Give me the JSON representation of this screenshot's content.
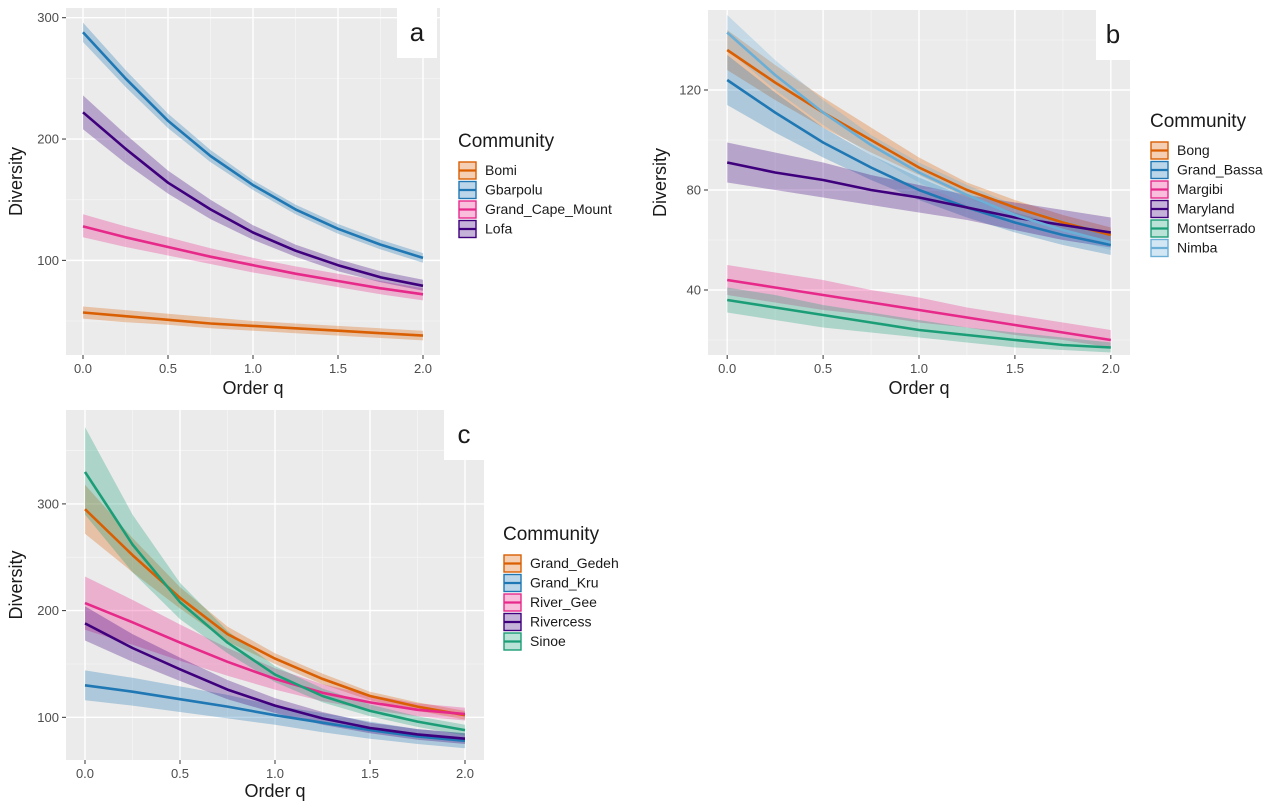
{
  "chart_data": [
    {
      "type": "line",
      "panel_label": "a",
      "xlabel": "Order q",
      "ylabel": "Diversity",
      "legend_title": "Community",
      "xlim": [
        -0.1,
        2.1
      ],
      "ylim": [
        22,
        308
      ],
      "xticks": [
        "0.0",
        "0.5",
        "1.0",
        "1.5",
        "2.0"
      ],
      "xtick_values": [
        0,
        0.5,
        1,
        1.5,
        2
      ],
      "yticks": [
        "100",
        "200",
        "300"
      ],
      "ytick_values": [
        100,
        200,
        300
      ],
      "x": [
        0,
        0.25,
        0.5,
        0.75,
        1.0,
        1.25,
        1.5,
        1.75,
        2.0
      ],
      "series": [
        {
          "name": "Bomi",
          "color": "#d95f02",
          "values": [
            57,
            54,
            51,
            48,
            46,
            44,
            42,
            40,
            38
          ],
          "lower": [
            52,
            49,
            47,
            44,
            42,
            40,
            38,
            36,
            34
          ],
          "upper": [
            62,
            59,
            56,
            53,
            50,
            48,
            46,
            44,
            42
          ]
        },
        {
          "name": "Gbarpolu",
          "color": "#1f78b4",
          "values": [
            288,
            250,
            215,
            186,
            162,
            142,
            126,
            113,
            102
          ],
          "lower": [
            280,
            243,
            209,
            181,
            158,
            138,
            122,
            109,
            98
          ],
          "upper": [
            296,
            257,
            221,
            191,
            166,
            146,
            130,
            117,
            106
          ]
        },
        {
          "name": "Grand_Cape_Mount",
          "color": "#e7298a",
          "values": [
            128,
            119,
            111,
            103,
            96,
            89,
            83,
            77,
            72
          ],
          "lower": [
            119,
            111,
            104,
            97,
            90,
            84,
            78,
            72,
            67
          ],
          "upper": [
            138,
            128,
            119,
            110,
            102,
            95,
            89,
            83,
            77
          ]
        },
        {
          "name": "Lofa",
          "color": "#3f007d",
          "values": [
            222,
            192,
            164,
            142,
            123,
            108,
            96,
            86,
            79
          ],
          "lower": [
            208,
            180,
            155,
            134,
            117,
            103,
            91,
            82,
            75
          ],
          "upper": [
            236,
            204,
            174,
            150,
            129,
            113,
            101,
            91,
            84
          ]
        }
      ]
    },
    {
      "type": "line",
      "panel_label": "b",
      "xlabel": "Order q",
      "ylabel": "Diversity",
      "legend_title": "Community",
      "xlim": [
        -0.1,
        2.1
      ],
      "ylim": [
        14,
        152
      ],
      "xticks": [
        "0.0",
        "0.5",
        "1.0",
        "1.5",
        "2.0"
      ],
      "xtick_values": [
        0,
        0.5,
        1,
        1.5,
        2
      ],
      "yticks": [
        "40",
        "80",
        "120"
      ],
      "ytick_values": [
        40,
        80,
        120
      ],
      "x": [
        0,
        0.25,
        0.5,
        0.75,
        1.0,
        1.25,
        1.5,
        1.75,
        2.0
      ],
      "series": [
        {
          "name": "Bong",
          "color": "#d95f02",
          "values": [
            136,
            123,
            111,
            100,
            89,
            80,
            73,
            67,
            62
          ],
          "lower": [
            128,
            116,
            105,
            95,
            86,
            77,
            70,
            64,
            59
          ],
          "upper": [
            144,
            130,
            117,
            105,
            93,
            83,
            76,
            70,
            65
          ]
        },
        {
          "name": "Grand_Bassa",
          "color": "#1f78b4",
          "values": [
            124,
            111,
            99,
            89,
            80,
            73,
            67,
            62,
            58
          ],
          "lower": [
            114,
            103,
            93,
            84,
            76,
            69,
            63,
            58,
            54
          ],
          "upper": [
            134,
            119,
            105,
            94,
            85,
            77,
            71,
            66,
            62
          ]
        },
        {
          "name": "Margibi",
          "color": "#e7298a",
          "values": [
            44,
            41,
            38,
            35,
            32,
            29,
            26,
            23,
            20
          ],
          "lower": [
            38,
            35,
            32,
            30,
            27,
            25,
            22,
            20,
            17
          ],
          "upper": [
            50,
            47,
            44,
            40,
            37,
            33,
            30,
            27,
            24
          ]
        },
        {
          "name": "Maryland",
          "color": "#3f007d",
          "values": [
            91,
            87,
            84,
            80,
            77,
            73,
            69,
            66,
            63
          ],
          "lower": [
            83,
            80,
            77,
            74,
            71,
            68,
            64,
            60,
            57
          ],
          "upper": [
            99,
            95,
            91,
            86,
            82,
            78,
            75,
            72,
            69
          ]
        },
        {
          "name": "Montserrado",
          "color": "#1b9e77",
          "values": [
            36,
            33,
            30,
            27,
            24,
            22,
            20,
            18,
            17
          ],
          "lower": [
            31,
            28,
            25,
            23,
            21,
            19,
            17,
            16,
            15
          ],
          "upper": [
            41,
            38,
            34,
            31,
            28,
            25,
            23,
            21,
            19
          ]
        },
        {
          "name": "Nimba",
          "color": "#6baed6",
          "values": [
            143,
            126,
            111,
            98,
            87,
            78,
            70,
            64,
            59
          ],
          "lower": [
            136,
            120,
            106,
            94,
            83,
            74,
            67,
            61,
            56
          ],
          "upper": [
            150,
            132,
            116,
            102,
            91,
            82,
            74,
            68,
            63
          ]
        }
      ]
    },
    {
      "type": "line",
      "panel_label": "c",
      "xlabel": "Order q",
      "ylabel": "Diversity",
      "legend_title": "Community",
      "xlim": [
        -0.1,
        2.1
      ],
      "ylim": [
        60,
        388
      ],
      "xticks": [
        "0.0",
        "0.5",
        "1.0",
        "1.5",
        "2.0"
      ],
      "xtick_values": [
        0,
        0.5,
        1,
        1.5,
        2
      ],
      "yticks": [
        "100",
        "200",
        "300"
      ],
      "ytick_values": [
        100,
        200,
        300
      ],
      "x": [
        0,
        0.25,
        0.5,
        0.75,
        1.0,
        1.25,
        1.5,
        1.75,
        2.0
      ],
      "series": [
        {
          "name": "Grand_Gedeh",
          "color": "#d95f02",
          "values": [
            295,
            252,
            212,
            178,
            155,
            136,
            120,
            110,
            102
          ],
          "lower": [
            272,
            236,
            202,
            171,
            150,
            131,
            116,
            106,
            98
          ],
          "upper": [
            318,
            268,
            222,
            185,
            160,
            141,
            124,
            114,
            106
          ]
        },
        {
          "name": "Grand_Kru",
          "color": "#1f78b4",
          "values": [
            130,
            124,
            117,
            110,
            102,
            95,
            88,
            82,
            78
          ],
          "lower": [
            116,
            111,
            105,
            99,
            93,
            86,
            80,
            75,
            71
          ],
          "upper": [
            144,
            137,
            129,
            121,
            111,
            104,
            96,
            89,
            85
          ]
        },
        {
          "name": "River_Gee",
          "color": "#e7298a",
          "values": [
            207,
            189,
            170,
            152,
            136,
            123,
            114,
            107,
            103
          ],
          "lower": [
            182,
            168,
            153,
            139,
            126,
            115,
            107,
            101,
            97
          ],
          "upper": [
            232,
            210,
            187,
            165,
            146,
            131,
            121,
            113,
            109
          ]
        },
        {
          "name": "Rivercess",
          "color": "#3f007d",
          "values": [
            188,
            165,
            145,
            126,
            111,
            99,
            90,
            84,
            80
          ],
          "lower": [
            172,
            152,
            134,
            117,
            104,
            93,
            85,
            79,
            75
          ],
          "upper": [
            204,
            178,
            156,
            135,
            118,
            105,
            95,
            89,
            85
          ]
        },
        {
          "name": "Sinoe",
          "color": "#1b9e77",
          "values": [
            330,
            262,
            208,
            170,
            140,
            120,
            106,
            96,
            88
          ],
          "lower": [
            290,
            236,
            192,
            160,
            133,
            114,
            101,
            91,
            83
          ],
          "upper": [
            372,
            290,
            226,
            181,
            148,
            127,
            112,
            101,
            93
          ]
        }
      ]
    }
  ]
}
